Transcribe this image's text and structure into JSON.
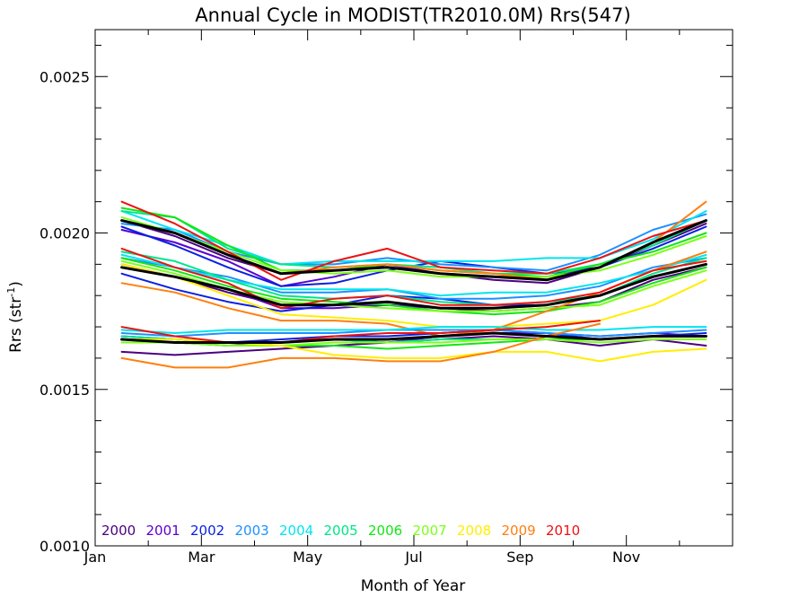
{
  "chart_data": {
    "type": "line",
    "title": "Annual Cycle in MODIST(TR2010.0M) Rrs(547)",
    "xlabel": "Month of Year",
    "ylabel_main": "Rrs (str",
    "ylabel_sup": "-1",
    "ylabel_close": ")",
    "xlim": [
      0,
      12
    ],
    "ylim": [
      0.001,
      0.00265
    ],
    "x_ticks": [
      {
        "v": 0,
        "label": "Jan"
      },
      {
        "v": 2,
        "label": "Mar"
      },
      {
        "v": 4,
        "label": "May"
      },
      {
        "v": 6,
        "label": "Jul"
      },
      {
        "v": 8,
        "label": "Sep"
      },
      {
        "v": 10,
        "label": "Nov"
      }
    ],
    "y_ticks": [
      {
        "v": 0.001,
        "label": "0.0010"
      },
      {
        "v": 0.0015,
        "label": "0.0015"
      },
      {
        "v": 0.002,
        "label": "0.0020"
      },
      {
        "v": 0.0025,
        "label": "0.0025"
      }
    ],
    "x": [
      0.5,
      1.5,
      2.5,
      3.5,
      4.5,
      5.5,
      6.5,
      7.5,
      8.5,
      9.5,
      10.5,
      11.5
    ],
    "legend": [
      {
        "label": "2000",
        "color": "#4b0082"
      },
      {
        "label": "2001",
        "color": "#5a00d2"
      },
      {
        "label": "2002",
        "color": "#0a1fe0"
      },
      {
        "label": "2003",
        "color": "#1e90ff"
      },
      {
        "label": "2004",
        "color": "#00e5ee"
      },
      {
        "label": "2005",
        "color": "#00e68a"
      },
      {
        "label": "2006",
        "color": "#12e612"
      },
      {
        "label": "2007",
        "color": "#7cff1a"
      },
      {
        "label": "2008",
        "color": "#ffee00"
      },
      {
        "label": "2009",
        "color": "#ff7f0e"
      },
      {
        "label": "2010",
        "color": "#ee1111"
      }
    ],
    "series": [
      {
        "color": "#4b0082",
        "values": [
          0.00204,
          0.00199,
          0.00192,
          0.00187,
          0.00188,
          0.00189,
          0.00187,
          0.00185,
          0.00184,
          0.00189,
          0.00196,
          0.00203
        ]
      },
      {
        "color": "#5a00d2",
        "values": [
          0.00201,
          0.00197,
          0.00191,
          0.00183,
          0.00186,
          0.0019,
          0.00187,
          0.00186,
          0.00186,
          0.00189,
          0.00197,
          0.00204
        ]
      },
      {
        "color": "#0a1fe0",
        "values": [
          0.00202,
          0.00196,
          0.00189,
          0.00183,
          0.00184,
          0.00188,
          0.00191,
          0.00189,
          0.00187,
          0.00189,
          0.00195,
          0.00202
        ]
      },
      {
        "color": "#1e90ff",
        "values": [
          0.00203,
          0.00201,
          0.00194,
          0.0019,
          0.0019,
          0.00192,
          0.0019,
          0.00189,
          0.00188,
          0.00193,
          0.00201,
          0.00206
        ]
      },
      {
        "color": "#00e5ee",
        "values": [
          0.00207,
          0.00201,
          0.00196,
          0.0019,
          0.00191,
          0.00191,
          0.00191,
          0.00191,
          0.00192,
          0.00192,
          0.00198,
          0.00207
        ]
      },
      {
        "color": "#00e68a",
        "values": [
          0.00207,
          0.00205,
          0.00195,
          0.0019,
          0.00189,
          0.0019,
          0.00189,
          0.00187,
          0.00187,
          0.0019,
          0.00196,
          0.00204
        ]
      },
      {
        "color": "#12e612",
        "values": [
          0.00208,
          0.00205,
          0.00196,
          0.00188,
          0.00188,
          0.0019,
          0.00188,
          0.00187,
          0.00186,
          0.0019,
          0.00194,
          0.002
        ]
      },
      {
        "color": "#7cff1a",
        "values": [
          0.00205,
          0.002,
          0.00194,
          0.00188,
          0.00187,
          0.00188,
          0.00186,
          0.00186,
          0.00186,
          0.00188,
          0.00193,
          0.00199
        ]
      },
      {
        "color": "#ff7f0e",
        "values": [
          0.00204,
          0.002,
          0.00193,
          0.00187,
          0.00189,
          0.0019,
          0.00188,
          0.00187,
          0.00185,
          0.00189,
          0.00197,
          0.0021
        ]
      },
      {
        "color": "#ee1111",
        "values": [
          0.0021,
          0.00203,
          0.00194,
          0.00185,
          0.00191,
          0.00195,
          0.00189,
          0.00188,
          0.00187,
          0.00192,
          0.00199,
          0.00204
        ]
      },
      {
        "color": "#000000",
        "values": [
          0.00204,
          0.002,
          0.00193,
          0.00187,
          0.00188,
          0.00189,
          0.00187,
          0.00186,
          0.00185,
          0.00189,
          0.00197,
          0.00204
        ]
      },
      {
        "color": "#4b0082",
        "values": [
          0.00189,
          0.00186,
          0.00181,
          0.00177,
          0.00177,
          0.00177,
          0.00176,
          0.00175,
          0.00176,
          0.00178,
          0.00185,
          0.00189
        ]
      },
      {
        "color": "#5a00d2",
        "values": [
          0.0019,
          0.00186,
          0.00182,
          0.00176,
          0.00176,
          0.00177,
          0.00176,
          0.00176,
          0.00177,
          0.0018,
          0.00186,
          0.0019
        ]
      },
      {
        "color": "#0a1fe0",
        "values": [
          0.00187,
          0.00182,
          0.00178,
          0.00175,
          0.00177,
          0.0018,
          0.00179,
          0.00177,
          0.00177,
          0.0018,
          0.00186,
          0.0019
        ]
      },
      {
        "color": "#1e90ff",
        "values": [
          0.00192,
          0.00189,
          0.00186,
          0.00181,
          0.00181,
          0.00182,
          0.00179,
          0.00179,
          0.0018,
          0.00183,
          0.00189,
          0.00192
        ]
      },
      {
        "color": "#00e5ee",
        "values": [
          0.00193,
          0.00189,
          0.00185,
          0.00182,
          0.00182,
          0.00182,
          0.0018,
          0.00181,
          0.00181,
          0.00184,
          0.00188,
          0.00193
        ]
      },
      {
        "color": "#00e68a",
        "values": [
          0.00194,
          0.00191,
          0.00185,
          0.0018,
          0.00179,
          0.0018,
          0.00178,
          0.00177,
          0.00178,
          0.0018,
          0.00187,
          0.00192
        ]
      },
      {
        "color": "#12e612",
        "values": [
          0.00192,
          0.00188,
          0.00183,
          0.00179,
          0.00178,
          0.00177,
          0.00175,
          0.00174,
          0.00175,
          0.00178,
          0.00184,
          0.00189
        ]
      },
      {
        "color": "#7cff1a",
        "values": [
          0.00191,
          0.00187,
          0.00182,
          0.00178,
          0.00177,
          0.00176,
          0.00175,
          0.00175,
          0.00176,
          0.00177,
          0.00183,
          0.00188
        ]
      },
      {
        "color": "#ffee00",
        "values": [
          0.0019,
          0.00186,
          0.0018,
          0.00174,
          0.00173,
          0.00172,
          0.0017,
          0.0017,
          0.00171,
          0.00172,
          0.00177,
          0.00185
        ]
      },
      {
        "color": "#ff7f0e",
        "values": [
          0.00184,
          0.00181,
          0.00176,
          0.00172,
          0.00172,
          0.00171,
          0.00167,
          0.00169,
          0.00175,
          0.00181,
          0.00188,
          0.00194
        ]
      },
      {
        "color": "#ee1111",
        "values": [
          0.00195,
          0.00189,
          0.00184,
          0.00176,
          0.00179,
          0.0018,
          0.00177,
          0.00177,
          0.00178,
          0.00181,
          0.00188,
          0.00191
        ]
      },
      {
        "color": "#000000",
        "values": [
          0.00189,
          0.00186,
          0.00182,
          0.00177,
          0.00177,
          0.00178,
          0.00176,
          0.00176,
          0.00177,
          0.0018,
          0.00186,
          0.0019
        ]
      },
      {
        "color": "#4b0082",
        "values": [
          0.00162,
          0.00161,
          0.00162,
          0.00163,
          0.00164,
          0.00165,
          0.00166,
          0.00167,
          0.00166,
          0.00164,
          0.00166,
          0.00164
        ]
      },
      {
        "color": "#5a00d2",
        "values": [
          0.00166,
          0.00165,
          0.00164,
          0.00165,
          0.00166,
          0.00165,
          0.00167,
          0.00168,
          0.00168,
          0.00167,
          0.00168,
          0.00167
        ]
      },
      {
        "color": "#0a1fe0",
        "values": [
          0.00167,
          0.00166,
          0.00165,
          0.00166,
          0.00167,
          0.00167,
          0.00168,
          0.00169,
          0.00168,
          0.00166,
          0.00167,
          0.00168
        ]
      },
      {
        "color": "#1e90ff",
        "values": [
          0.00168,
          0.00167,
          0.00168,
          0.00168,
          0.00168,
          0.00169,
          0.00169,
          0.00169,
          0.00168,
          0.00167,
          0.00168,
          0.00169
        ]
      },
      {
        "color": "#00e5ee",
        "values": [
          0.00169,
          0.00168,
          0.00169,
          0.00169,
          0.00169,
          0.00169,
          0.0017,
          0.0017,
          0.00169,
          0.00169,
          0.0017,
          0.0017
        ]
      },
      {
        "color": "#00e68a",
        "values": [
          0.00167,
          0.00166,
          0.00165,
          0.00165,
          0.00166,
          0.00165,
          0.00166,
          0.00166,
          0.00166,
          0.00166,
          0.00167,
          0.00167
        ]
      },
      {
        "color": "#12e612",
        "values": [
          0.00166,
          0.00166,
          0.00165,
          0.00164,
          0.00164,
          0.00163,
          0.00164,
          0.00165,
          0.00166,
          0.00166,
          0.00167,
          0.00167
        ]
      },
      {
        "color": "#7cff1a",
        "values": [
          0.00165,
          0.00165,
          0.00164,
          0.00164,
          0.00165,
          0.00165,
          0.00165,
          0.00166,
          0.00166,
          0.00165,
          0.00166,
          0.00166
        ]
      },
      {
        "color": "#ffee00",
        "values": [
          0.00166,
          0.00166,
          0.00165,
          0.00164,
          0.00161,
          0.0016,
          0.0016,
          0.00162,
          0.00162,
          0.00159,
          0.00162,
          0.00163
        ]
      },
      {
        "color": "#ff7f0e",
        "values": [
          0.0016,
          0.00157,
          0.00157,
          0.0016,
          0.0016,
          0.00159,
          0.00159,
          0.00162,
          0.00167,
          0.00171,
          null,
          null
        ]
      },
      {
        "color": "#ee1111",
        "values": [
          0.0017,
          0.00167,
          0.00165,
          0.00165,
          0.00167,
          0.00168,
          0.00168,
          0.00169,
          0.0017,
          0.00172,
          null,
          null
        ]
      },
      {
        "color": "#000000",
        "values": [
          0.00166,
          0.00165,
          0.00165,
          0.00165,
          0.00166,
          0.00166,
          0.00167,
          0.00168,
          0.00167,
          0.00166,
          0.00167,
          0.00167
        ]
      }
    ]
  }
}
